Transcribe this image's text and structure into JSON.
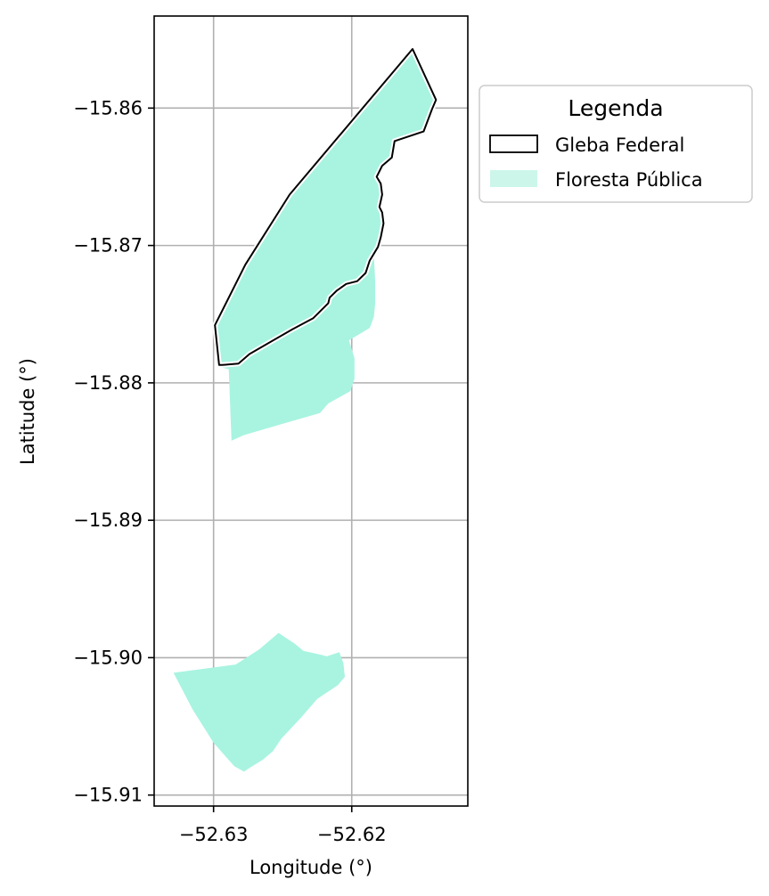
{
  "chart_data": {
    "type": "map",
    "xlabel": "Longitude (°)",
    "ylabel": "Latitude (°)",
    "xlim": [
      -52.6343,
      -52.6116
    ],
    "ylim": [
      -15.9108,
      -15.8533
    ],
    "x_ticks": [
      {
        "value": -52.63,
        "label": "−52.63"
      },
      {
        "value": -52.62,
        "label": "−52.62"
      }
    ],
    "y_ticks": [
      {
        "value": -15.86,
        "label": "−15.86"
      },
      {
        "value": -15.87,
        "label": "−15.87"
      },
      {
        "value": -15.88,
        "label": "−15.88"
      },
      {
        "value": -15.89,
        "label": "−15.89"
      },
      {
        "value": -15.9,
        "label": "−15.90"
      },
      {
        "value": -15.91,
        "label": "−15.91"
      }
    ],
    "grid": true,
    "legend": {
      "title": "Legenda",
      "placement": "outside-upper-right",
      "entries": [
        {
          "label": "Gleba Federal",
          "style": "outline",
          "edge_color": "#000000"
        },
        {
          "label": "Floresta Pública",
          "style": "fill",
          "color": "#cdf6ea"
        }
      ]
    },
    "floresta_color": "#a8f4e0",
    "floresta_polygons": [
      [
        [
          -52.6156,
          -15.8557
        ],
        [
          -52.6139,
          -15.8594
        ],
        [
          -52.6142,
          -15.8601
        ],
        [
          -52.6148,
          -15.8617
        ],
        [
          -52.6169,
          -15.8624
        ],
        [
          -52.6171,
          -15.8636
        ],
        [
          -52.6178,
          -15.8642
        ],
        [
          -52.6182,
          -15.8653
        ],
        [
          -52.6179,
          -15.8666
        ],
        [
          -52.6181,
          -15.8677
        ],
        [
          -52.618,
          -15.8692
        ],
        [
          -52.6184,
          -15.8707
        ],
        [
          -52.6183,
          -15.8727
        ],
        [
          -52.6183,
          -15.8742
        ],
        [
          -52.6184,
          -15.8752
        ],
        [
          -52.6187,
          -15.876
        ],
        [
          -52.6202,
          -15.8769
        ],
        [
          -52.6198,
          -15.8782
        ],
        [
          -52.6198,
          -15.8797
        ],
        [
          -52.6201,
          -15.8806
        ],
        [
          -52.6217,
          -15.8815
        ],
        [
          -52.6223,
          -15.8822
        ],
        [
          -52.6251,
          -15.883
        ],
        [
          -52.6278,
          -15.8838
        ],
        [
          -52.6287,
          -15.8842
        ],
        [
          -52.6289,
          -15.879
        ],
        [
          -52.6297,
          -15.8788
        ],
        [
          -52.6299,
          -15.8758
        ]
      ],
      [
        [
          -52.6253,
          -15.8982
        ],
        [
          -52.6241,
          -15.899
        ],
        [
          -52.6235,
          -15.8995
        ],
        [
          -52.6222,
          -15.8998
        ],
        [
          -52.6218,
          -15.8999
        ],
        [
          -52.6209,
          -15.8996
        ],
        [
          -52.6206,
          -15.9004
        ],
        [
          -52.6205,
          -15.9014
        ],
        [
          -52.621,
          -15.902
        ],
        [
          -52.6225,
          -15.903
        ],
        [
          -52.6237,
          -15.9044
        ],
        [
          -52.6251,
          -15.9059
        ],
        [
          -52.6257,
          -15.9068
        ],
        [
          -52.6264,
          -15.9074
        ],
        [
          -52.6275,
          -15.9081
        ],
        [
          -52.6278,
          -15.9083
        ],
        [
          -52.6285,
          -15.9079
        ],
        [
          -52.63,
          -15.9062
        ],
        [
          -52.6315,
          -15.9038
        ],
        [
          -52.6329,
          -15.9011
        ],
        [
          -52.6284,
          -15.9005
        ],
        [
          -52.6267,
          -15.8994
        ]
      ]
    ],
    "gleba_polygons": [
      [
        [
          -52.6156,
          -15.8557
        ],
        [
          -52.6139,
          -15.8594
        ],
        [
          -52.6142,
          -15.8601
        ],
        [
          -52.6148,
          -15.8617
        ],
        [
          -52.6169,
          -15.8624
        ],
        [
          -52.6171,
          -15.8636
        ],
        [
          -52.6178,
          -15.8642
        ],
        [
          -52.6182,
          -15.865
        ],
        [
          -52.6179,
          -15.8655
        ],
        [
          -52.6178,
          -15.8663
        ],
        [
          -52.618,
          -15.8672
        ],
        [
          -52.6178,
          -15.8676
        ],
        [
          -52.6177,
          -15.8684
        ],
        [
          -52.6179,
          -15.8694
        ],
        [
          -52.6181,
          -15.8701
        ],
        [
          -52.6187,
          -15.8711
        ],
        [
          -52.619,
          -15.872
        ],
        [
          -52.6196,
          -15.8726
        ],
        [
          -52.6204,
          -15.8728
        ],
        [
          -52.6211,
          -15.8733
        ],
        [
          -52.6216,
          -15.8738
        ],
        [
          -52.6217,
          -15.8742
        ],
        [
          -52.6228,
          -15.8753
        ],
        [
          -52.6243,
          -15.8761
        ],
        [
          -52.6274,
          -15.8779
        ],
        [
          -52.6282,
          -15.8786
        ],
        [
          -52.6294,
          -15.8787
        ],
        [
          -52.6296,
          -15.8787
        ],
        [
          -52.6299,
          -15.8758
        ],
        [
          -52.6277,
          -15.8714
        ],
        [
          -52.6245,
          -15.8663
        ]
      ]
    ]
  }
}
